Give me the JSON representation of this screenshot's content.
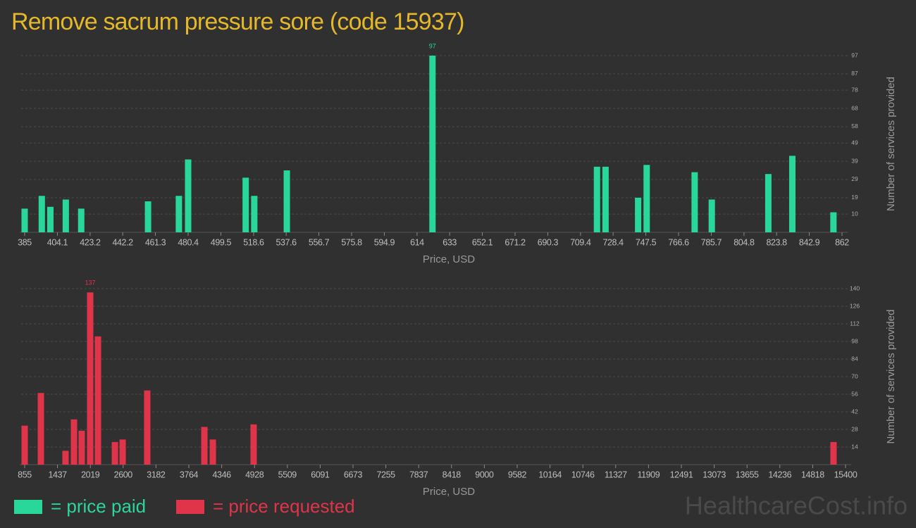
{
  "title": "Remove sacrum pressure sore (code 15937)",
  "watermark": "HealthcareCost.info",
  "chart_data": [
    {
      "type": "bar",
      "x_label": "Price, USD",
      "y_label": "Number of services provided",
      "series": [
        {
          "name": "= price paid",
          "color": "#2ad79a",
          "x": [
            385,
            395,
            400,
            409,
            418,
            457,
            475,
            480.4,
            514,
            519,
            538,
            623,
            719,
            724,
            743,
            748,
            776,
            786,
            819,
            833,
            857
          ],
          "values": [
            13,
            20,
            14,
            18,
            13,
            17,
            20,
            40,
            30,
            20,
            34,
            97,
            36,
            36,
            19,
            37,
            33,
            18,
            32,
            42,
            11
          ]
        }
      ],
      "xlim": [
        385,
        862
      ],
      "xticks": [
        385,
        404.1,
        423.2,
        442.2,
        461.3,
        480.4,
        499.5,
        518.6,
        537.6,
        556.7,
        575.8,
        594.9,
        614,
        633,
        652.1,
        671.2,
        690.3,
        709.4,
        728.4,
        747.5,
        766.6,
        785.7,
        804.8,
        823.8,
        842.9,
        862
      ],
      "ylim": [
        0,
        97
      ],
      "yticks": [
        10,
        19,
        29,
        39,
        49,
        58,
        68,
        78,
        87,
        97
      ],
      "grid": true
    },
    {
      "type": "bar",
      "x_label": "Price, USD",
      "y_label": "Number of services provided",
      "series": [
        {
          "name": "= price requested",
          "color": "#e0344a",
          "x": [
            855,
            1142,
            1579,
            1729,
            1866,
            2016,
            2154,
            2454,
            2591,
            3027,
            4039,
            4189,
            4912,
            15187
          ],
          "values": [
            31,
            57,
            11,
            36,
            27,
            137,
            102,
            18,
            20,
            59,
            30,
            20,
            32,
            18
          ]
        }
      ],
      "xlim": [
        855,
        15400
      ],
      "xticks": [
        855,
        1437,
        2019,
        2600,
        3182,
        3764,
        4346,
        4928,
        5509,
        6091,
        6673,
        7255,
        7837,
        8418,
        9000,
        9582,
        10164,
        10746,
        11327,
        11909,
        12491,
        13073,
        13655,
        14236,
        14818,
        15400
      ],
      "ylim": [
        0,
        140
      ],
      "yticks": [
        14,
        28,
        42,
        56,
        70,
        84,
        98,
        112,
        126,
        140
      ],
      "grid": true
    }
  ]
}
